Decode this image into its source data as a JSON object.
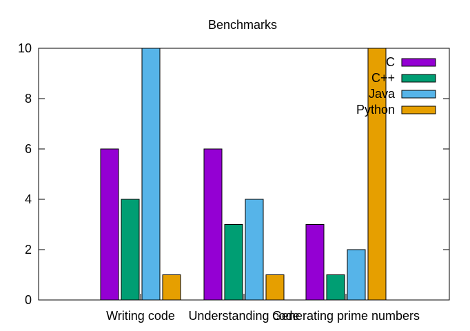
{
  "chart_data": {
    "type": "bar",
    "title": "Benchmarks",
    "xlabel": "",
    "ylabel": "",
    "categories": [
      "Writing code",
      "Understanding code",
      "Generating prime numbers"
    ],
    "series": [
      {
        "name": "C",
        "color": "#9400d3",
        "values": [
          6,
          6,
          3
        ]
      },
      {
        "name": "C++",
        "color": "#009e73",
        "values": [
          4,
          3,
          1
        ]
      },
      {
        "name": "Java",
        "color": "#56b4e9",
        "values": [
          10,
          4,
          2
        ]
      },
      {
        "name": "Python",
        "color": "#e69f00",
        "values": [
          1,
          1,
          10
        ]
      }
    ],
    "ylim": [
      0,
      10
    ],
    "yticks": [
      0,
      2,
      4,
      6,
      8,
      10
    ],
    "grid": false,
    "legend_position": "top-right"
  }
}
